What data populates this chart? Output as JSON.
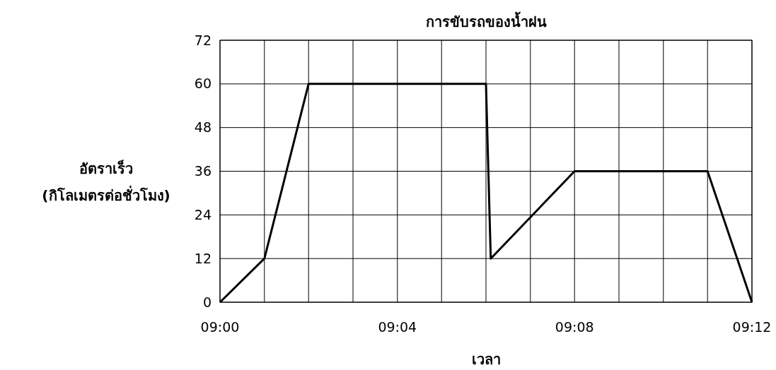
{
  "chart_data": {
    "type": "line",
    "title": "การขับรถของน้ำฝน",
    "xlabel": "เวลา",
    "ylabel": "อัตราเร็ว\n(กิโลเมตรต่อชั่วโมง)",
    "x": [
      9,
      9.0167,
      9.0333,
      9.1,
      9.1018,
      9.1333,
      9.1833,
      9.2
    ],
    "series": [
      {
        "color": "#000000",
        "values": [
          0,
          12,
          60,
          60,
          12,
          36,
          36,
          0
        ]
      }
    ],
    "xlim": [
      9,
      9.2
    ],
    "xticks": [
      {
        "value": 9,
        "label": "09:00"
      },
      {
        "value": 9.0167,
        "label": null
      },
      {
        "value": 9.0333,
        "label": null
      },
      {
        "value": 9.05,
        "label": null
      },
      {
        "value": 9.0667,
        "label": "09:04"
      },
      {
        "value": 9.0833,
        "label": null
      },
      {
        "value": 9.1,
        "label": null
      },
      {
        "value": 9.1167,
        "label": null
      },
      {
        "value": 9.1333,
        "label": "09:08"
      },
      {
        "value": 9.15,
        "label": null
      },
      {
        "value": 9.1667,
        "label": null
      },
      {
        "value": 9.1833,
        "label": null
      },
      {
        "value": 9.2,
        "label": "09:12"
      }
    ],
    "ylim": [
      0,
      72
    ],
    "yticks": [
      0,
      12,
      24,
      36,
      48,
      60,
      72
    ],
    "grid": true,
    "marker": "none",
    "line_style": "solid"
  }
}
